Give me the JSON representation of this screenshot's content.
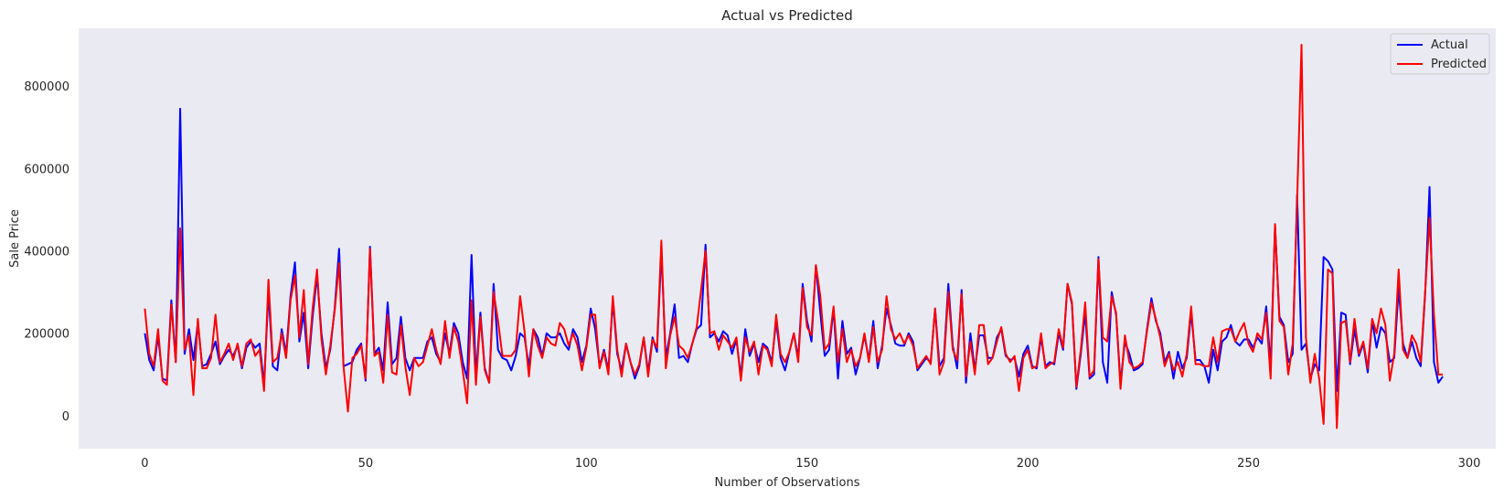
{
  "chart_data": {
    "type": "line",
    "title": "Actual vs Predicted",
    "xlabel": "Number of Observations",
    "ylabel": "Sale Price",
    "xlim": [
      -15,
      306
    ],
    "ylim": [
      -80000,
      940000
    ],
    "xticks": [
      0,
      50,
      100,
      150,
      200,
      250,
      300
    ],
    "yticks": [
      0,
      200000,
      400000,
      600000,
      800000
    ],
    "grid": false,
    "legend": "top-right",
    "background": "#eaeaf2",
    "series": [
      {
        "name": "Actual",
        "color": "#0000ff",
        "values": [
          200000,
          135000,
          110000,
          195000,
          90000,
          85000,
          280000,
          130000,
          745000,
          150000,
          210000,
          135000,
          225000,
          120000,
          125000,
          150000,
          180000,
          125000,
          145000,
          160000,
          145000,
          170000,
          115000,
          165000,
          180000,
          165000,
          175000,
          75000,
          300000,
          120000,
          110000,
          210000,
          150000,
          290000,
          372000,
          180000,
          250000,
          115000,
          240000,
          340000,
          200000,
          115000,
          160000,
          260000,
          405000,
          120000,
          125000,
          130000,
          160000,
          175000,
          85000,
          410000,
          150000,
          165000,
          110000,
          275000,
          125000,
          140000,
          240000,
          140000,
          110000,
          140000,
          140000,
          140000,
          180000,
          190000,
          150000,
          130000,
          200000,
          150000,
          225000,
          200000,
          130000,
          90000,
          390000,
          95000,
          250000,
          115000,
          80000,
          320000,
          160000,
          140000,
          135000,
          110000,
          145000,
          200000,
          190000,
          120000,
          210000,
          190000,
          145000,
          200000,
          190000,
          190000,
          200000,
          175000,
          160000,
          210000,
          190000,
          130000,
          170000,
          260000,
          210000,
          120000,
          160000,
          110000,
          280000,
          150000,
          110000,
          175000,
          130000,
          90000,
          120000,
          190000,
          105000,
          190000,
          155000,
          400000,
          140000,
          200000,
          270000,
          140000,
          145000,
          130000,
          175000,
          210000,
          220000,
          415000,
          190000,
          200000,
          180000,
          205000,
          195000,
          150000,
          185000,
          95000,
          210000,
          145000,
          175000,
          130000,
          175000,
          165000,
          130000,
          230000,
          140000,
          110000,
          155000,
          200000,
          140000,
          320000,
          230000,
          180000,
          365000,
          250000,
          145000,
          160000,
          260000,
          90000,
          230000,
          150000,
          165000,
          100000,
          140000,
          195000,
          135000,
          230000,
          115000,
          170000,
          260000,
          220000,
          175000,
          170000,
          170000,
          200000,
          180000,
          110000,
          125000,
          140000,
          130000,
          260000,
          120000,
          140000,
          320000,
          170000,
          115000,
          305000,
          80000,
          200000,
          110000,
          195000,
          195000,
          140000,
          140000,
          190000,
          210000,
          145000,
          135000,
          140000,
          95000,
          150000,
          170000,
          120000,
          115000,
          190000,
          120000,
          130000,
          125000,
          200000,
          160000,
          320000,
          270000,
          65000,
          150000,
          250000,
          90000,
          100000,
          385000,
          130000,
          80000,
          300000,
          245000,
          80000,
          180000,
          150000,
          110000,
          115000,
          125000,
          210000,
          285000,
          230000,
          200000,
          130000,
          155000,
          90000,
          155000,
          115000,
          140000,
          250000,
          135000,
          135000,
          120000,
          80000,
          160000,
          110000,
          180000,
          190000,
          220000,
          180000,
          170000,
          185000,
          185000,
          165000,
          190000,
          175000,
          265000,
          120000,
          460000,
          240000,
          220000,
          130000,
          150000,
          535000,
          160000,
          175000,
          90000,
          125000,
          110000,
          385000,
          375000,
          355000,
          60000,
          250000,
          245000,
          125000,
          210000,
          145000,
          175000,
          105000,
          230000,
          165000,
          215000,
          200000,
          130000,
          140000,
          310000,
          175000,
          140000,
          180000,
          140000,
          120000,
          295000,
          555000,
          130000,
          80000,
          95000
        ]
      },
      {
        "name": "Predicted",
        "color": "#ff0000",
        "values": [
          260000,
          150000,
          120000,
          210000,
          85000,
          75000,
          270000,
          130000,
          455000,
          160000,
          195000,
          50000,
          235000,
          115000,
          115000,
          140000,
          245000,
          130000,
          150000,
          175000,
          135000,
          175000,
          120000,
          175000,
          185000,
          145000,
          160000,
          60000,
          330000,
          130000,
          140000,
          200000,
          140000,
          280000,
          340000,
          190000,
          305000,
          125000,
          260000,
          355000,
          185000,
          100000,
          170000,
          255000,
          370000,
          120000,
          10000,
          140000,
          150000,
          170000,
          90000,
          405000,
          145000,
          155000,
          80000,
          245000,
          105000,
          100000,
          220000,
          120000,
          50000,
          140000,
          120000,
          130000,
          170000,
          210000,
          160000,
          125000,
          230000,
          140000,
          215000,
          180000,
          110000,
          30000,
          280000,
          75000,
          240000,
          110000,
          80000,
          300000,
          230000,
          145000,
          145000,
          145000,
          160000,
          290000,
          205000,
          95000,
          210000,
          170000,
          140000,
          190000,
          175000,
          170000,
          225000,
          210000,
          170000,
          200000,
          170000,
          110000,
          165000,
          245000,
          245000,
          115000,
          155000,
          100000,
          290000,
          160000,
          95000,
          175000,
          130000,
          100000,
          125000,
          190000,
          95000,
          185000,
          165000,
          425000,
          115000,
          195000,
          240000,
          170000,
          160000,
          140000,
          175000,
          215000,
          305000,
          400000,
          200000,
          205000,
          160000,
          195000,
          180000,
          165000,
          190000,
          85000,
          190000,
          155000,
          180000,
          100000,
          170000,
          160000,
          120000,
          245000,
          150000,
          130000,
          155000,
          200000,
          130000,
          310000,
          215000,
          195000,
          365000,
          290000,
          160000,
          175000,
          265000,
          130000,
          210000,
          130000,
          160000,
          120000,
          140000,
          200000,
          130000,
          215000,
          130000,
          160000,
          290000,
          210000,
          185000,
          200000,
          175000,
          195000,
          170000,
          115000,
          130000,
          145000,
          125000,
          260000,
          100000,
          130000,
          300000,
          160000,
          135000,
          295000,
          95000,
          180000,
          100000,
          220000,
          220000,
          125000,
          140000,
          180000,
          215000,
          150000,
          130000,
          145000,
          60000,
          140000,
          160000,
          115000,
          120000,
          200000,
          115000,
          125000,
          130000,
          210000,
          165000,
          320000,
          275000,
          70000,
          160000,
          275000,
          95000,
          110000,
          380000,
          190000,
          180000,
          290000,
          250000,
          65000,
          195000,
          130000,
          115000,
          120000,
          130000,
          205000,
          275000,
          235000,
          190000,
          120000,
          150000,
          110000,
          130000,
          95000,
          150000,
          265000,
          125000,
          125000,
          120000,
          120000,
          190000,
          130000,
          205000,
          210000,
          210000,
          180000,
          205000,
          225000,
          175000,
          155000,
          200000,
          185000,
          250000,
          90000,
          465000,
          230000,
          215000,
          100000,
          175000,
          520000,
          900000,
          190000,
          80000,
          150000,
          90000,
          -20000,
          355000,
          345000,
          -30000,
          225000,
          230000,
          130000,
          235000,
          150000,
          180000,
          115000,
          235000,
          200000,
          260000,
          220000,
          85000,
          150000,
          355000,
          160000,
          140000,
          195000,
          175000,
          130000,
          300000,
          480000,
          245000,
          100000,
          100000
        ]
      }
    ]
  }
}
